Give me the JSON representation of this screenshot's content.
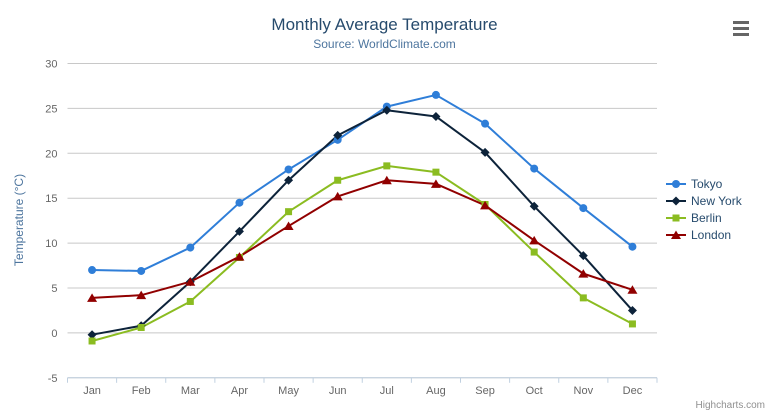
{
  "credits": {
    "label": "Highcharts.com"
  },
  "context_menu": {
    "icon": "hamburger-menu",
    "color": "#666666"
  },
  "chart_data": {
    "type": "line",
    "title": "Monthly Average Temperature",
    "subtitle": "Source: WorldClimate.com",
    "xlabel": "",
    "ylabel": "Temperature (°C)",
    "ylim": [
      -5,
      30
    ],
    "ytick_step": 5,
    "grid": true,
    "legend_position": "right",
    "categories": [
      "Jan",
      "Feb",
      "Mar",
      "Apr",
      "May",
      "Jun",
      "Jul",
      "Aug",
      "Sep",
      "Oct",
      "Nov",
      "Dec"
    ],
    "series": [
      {
        "name": "Tokyo",
        "color": "#2f7ed8",
        "marker": "circle",
        "values": [
          7.0,
          6.9,
          9.5,
          14.5,
          18.2,
          21.5,
          25.2,
          26.5,
          23.3,
          18.3,
          13.9,
          9.6
        ]
      },
      {
        "name": "New York",
        "color": "#0d233a",
        "marker": "diamond",
        "values": [
          -0.2,
          0.8,
          5.7,
          11.3,
          17.0,
          22.0,
          24.8,
          24.1,
          20.1,
          14.1,
          8.6,
          2.5
        ]
      },
      {
        "name": "Berlin",
        "color": "#8bbc21",
        "marker": "square",
        "values": [
          -0.9,
          0.6,
          3.5,
          8.4,
          13.5,
          17.0,
          18.6,
          17.9,
          14.3,
          9.0,
          3.9,
          1.0
        ]
      },
      {
        "name": "London",
        "color": "#910000",
        "marker": "triangle",
        "values": [
          3.9,
          4.2,
          5.7,
          8.5,
          11.9,
          15.2,
          17.0,
          16.6,
          14.2,
          10.3,
          6.6,
          4.8
        ]
      }
    ],
    "theme": {
      "background": "#ffffff",
      "title_color": "#274b6d",
      "subtitle_color": "#4d759e",
      "axis_title_color": "#4d759e",
      "tick_label_color": "#666666",
      "grid_color": "#c8c8c8",
      "axis_line_color": "#c0d0e0",
      "legend_text_color": "#274b6d",
      "credits_color": "#909090"
    }
  }
}
